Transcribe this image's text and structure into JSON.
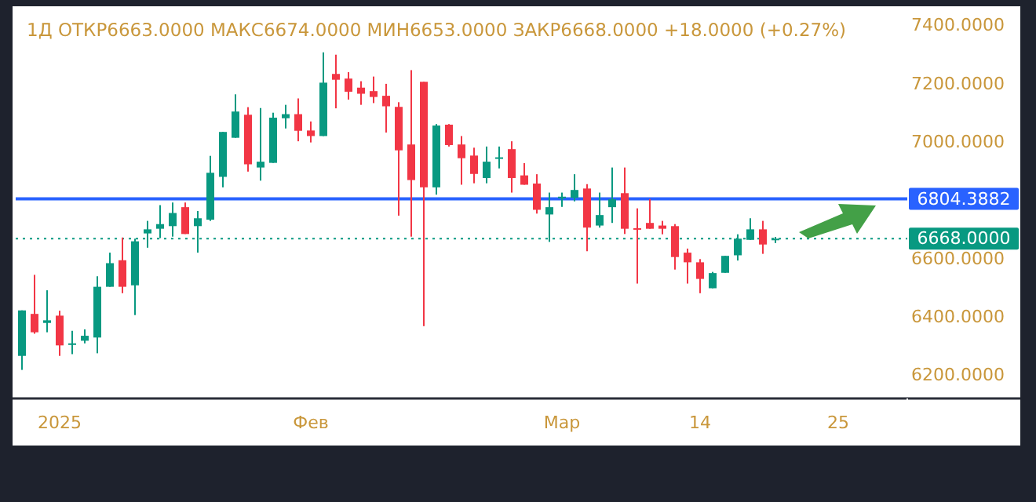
{
  "chart_data": {
    "type": "candlestick",
    "title": "1Д ОТКР6663.0000 МАКС6674.0000 МИН6653.0000 ЗАКР6668.0000 +18.0000 (+0.27%)",
    "categories": [
      null,
      null,
      null,
      "2025",
      null,
      null,
      null,
      null,
      null,
      null,
      null,
      null,
      null,
      null,
      null,
      null,
      null,
      null,
      null,
      null,
      null,
      null,
      null,
      "Фев",
      null,
      null,
      null,
      null,
      null,
      null,
      null,
      null,
      null,
      null,
      null,
      null,
      null,
      null,
      null,
      null,
      null,
      null,
      null,
      "Мар",
      null,
      null,
      null,
      null,
      null,
      null,
      null,
      null,
      null,
      null,
      "14",
      null,
      null,
      null,
      null,
      null,
      null,
      null,
      null,
      null,
      null,
      "25",
      null,
      null,
      null,
      null,
      null
    ],
    "ohlc": [
      [
        6266,
        6422,
        6218,
        6422
      ],
      [
        6410,
        6544,
        6342,
        6347
      ],
      [
        6379,
        6491,
        6347,
        6388
      ],
      [
        6404,
        6421,
        6266,
        6302
      ],
      [
        6306,
        6352,
        6272,
        6309
      ],
      [
        6318,
        6357,
        6309,
        6335
      ],
      [
        6329,
        6539,
        6275,
        6503
      ],
      [
        6503,
        6620,
        6503,
        6584
      ],
      [
        6594,
        6672,
        6481,
        6503
      ],
      [
        6508,
        6668,
        6406,
        6659
      ],
      [
        6686,
        6729,
        6637,
        6700
      ],
      [
        6702,
        6783,
        6670,
        6718
      ],
      [
        6711,
        6792,
        6675,
        6756
      ],
      [
        6776,
        6792,
        6684,
        6684
      ],
      [
        6711,
        6763,
        6620,
        6738
      ],
      [
        6733,
        6952,
        6729,
        6894
      ],
      [
        6880,
        7034,
        6844,
        7034
      ],
      [
        7014,
        7163,
        7014,
        7104
      ],
      [
        7093,
        7119,
        6898,
        6923
      ],
      [
        6912,
        7116,
        6867,
        6932
      ],
      [
        6928,
        7100,
        6928,
        7083
      ],
      [
        7081,
        7127,
        7046,
        7095
      ],
      [
        7095,
        7149,
        7002,
        7038
      ],
      [
        7039,
        7070,
        6998,
        7020
      ],
      [
        7020,
        7307,
        7020,
        7203
      ],
      [
        7233,
        7299,
        7115,
        7213
      ],
      [
        7217,
        7239,
        7145,
        7172
      ],
      [
        7186,
        7208,
        7127,
        7165
      ],
      [
        7174,
        7224,
        7133,
        7154
      ],
      [
        7158,
        7199,
        7032,
        7122
      ],
      [
        7120,
        7136,
        6747,
        6971
      ],
      [
        6991,
        7246,
        6675,
        6869
      ],
      [
        7206,
        7206,
        6368,
        6844
      ],
      [
        6844,
        7061,
        6819,
        7056
      ],
      [
        7059,
        7061,
        6984,
        6989
      ],
      [
        6991,
        7020,
        6853,
        6944
      ],
      [
        6953,
        6980,
        6858,
        6890
      ],
      [
        6876,
        6984,
        6858,
        6932
      ],
      [
        6942,
        6984,
        6909,
        6947
      ],
      [
        6975,
        7002,
        6826,
        6876
      ],
      [
        6885,
        6927,
        6853,
        6853
      ],
      [
        6857,
        6889,
        6754,
        6767
      ],
      [
        6751,
        6826,
        6657,
        6776
      ],
      [
        6809,
        6826,
        6777,
        6812
      ],
      [
        6808,
        6889,
        6796,
        6835
      ],
      [
        6840,
        6855,
        6625,
        6706
      ],
      [
        6713,
        6826,
        6706,
        6749
      ],
      [
        6776,
        6912,
        6722,
        6803
      ],
      [
        6824,
        6912,
        6684,
        6702
      ],
      [
        6704,
        6772,
        6514,
        6700
      ],
      [
        6722,
        6804,
        6702,
        6702
      ],
      [
        6713,
        6729,
        6683,
        6702
      ],
      [
        6711,
        6718,
        6562,
        6605
      ],
      [
        6620,
        6634,
        6514,
        6587
      ],
      [
        6587,
        6598,
        6481,
        6530
      ],
      [
        6498,
        6554,
        6498,
        6550
      ],
      [
        6551,
        6609,
        6551,
        6609
      ],
      [
        6611,
        6683,
        6593,
        6668
      ],
      [
        6664,
        6738,
        6664,
        6700
      ],
      [
        6700,
        6729,
        6616,
        6648
      ],
      [
        6663,
        6674,
        6653,
        6668
      ],
      null,
      null,
      null,
      null,
      null,
      null,
      null,
      null,
      null,
      null
    ],
    "ylim": [
      6120,
      7465
    ],
    "yticks": [
      {
        "value": 6200,
        "label": "6200.0000"
      },
      {
        "value": 6400,
        "label": "6400.0000"
      },
      {
        "value": 6600,
        "label": "6600.0000"
      },
      {
        "value": 7000,
        "label": "7000.0000"
      },
      {
        "value": 7200,
        "label": "7200.0000"
      },
      {
        "value": 7400,
        "label": "7400.0000"
      }
    ],
    "ref_lines": [
      {
        "axis": "y",
        "value": 6804.3882,
        "label": "6804.3882",
        "color": "#2962ff",
        "line_style": "solid"
      },
      {
        "axis": "y",
        "value": 6668,
        "label": "6668.0000",
        "color": "#089981",
        "line_style": "dotted"
      }
    ]
  }
}
